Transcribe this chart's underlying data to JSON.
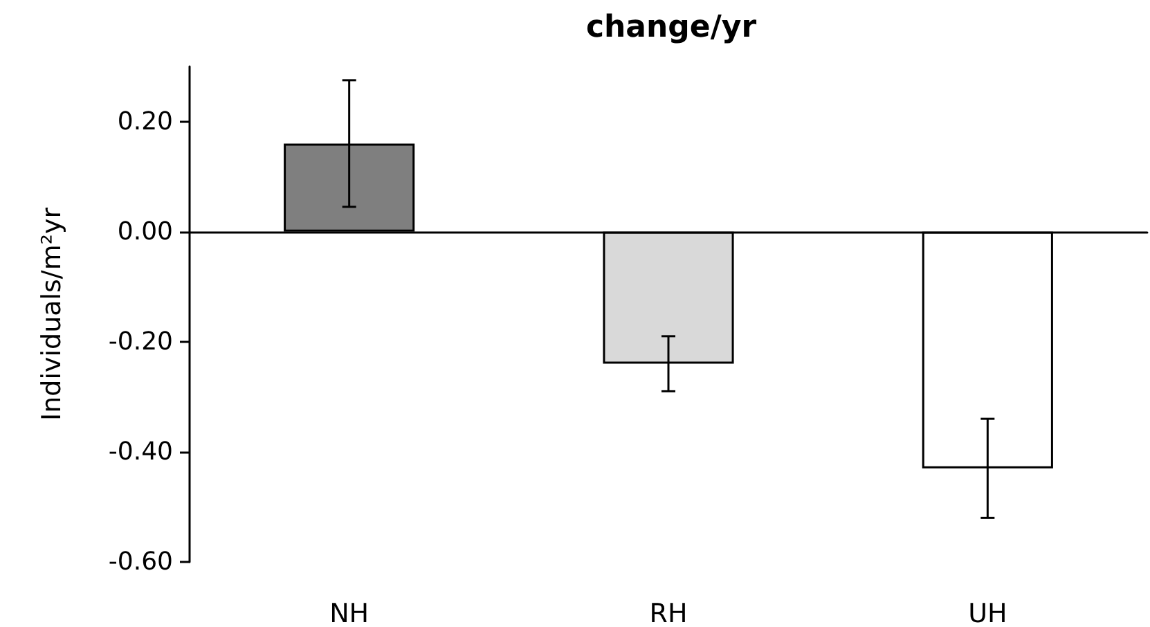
{
  "chart_data": {
    "type": "bar",
    "title": "change/yr",
    "ylabel": "Individuals/m²yr",
    "categories": [
      "NH",
      "RH",
      "UH"
    ],
    "values": [
      0.16,
      -0.24,
      -0.43
    ],
    "colors": [
      "#7f7f7f",
      "#d9d9d9",
      "#ffffff"
    ],
    "errors": [
      0.115,
      0.05,
      0.09
    ],
    "ylim": [
      -0.6,
      0.3
    ],
    "yticks": [
      {
        "value": -0.6,
        "label": "-0.60"
      },
      {
        "value": -0.4,
        "label": "-0.40"
      },
      {
        "value": -0.2,
        "label": "-0.20"
      },
      {
        "value": 0,
        "label": "0.00"
      },
      {
        "value": 0.2,
        "label": "0.20"
      }
    ],
    "tick_labels": true
  }
}
